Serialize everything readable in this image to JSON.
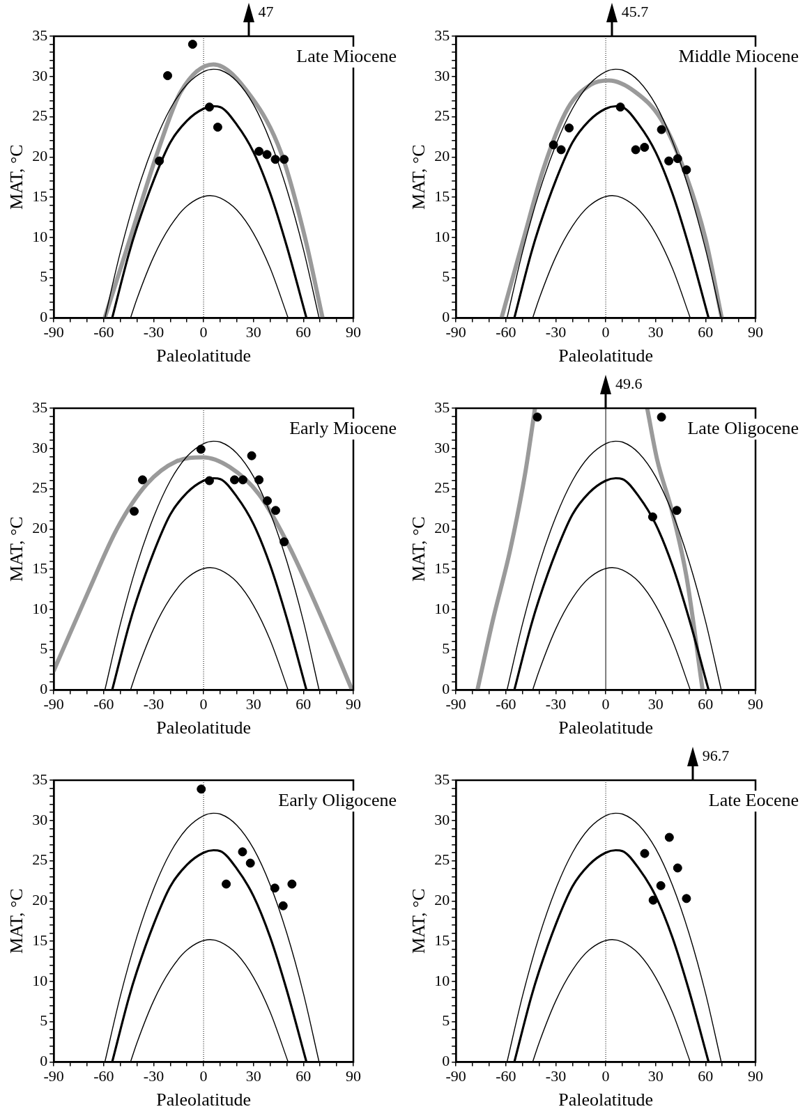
{
  "chart_data": [
    {
      "type": "line",
      "title": "Late Miocene",
      "xlabel": "Paleolatitude",
      "ylabel": "MAT, °C",
      "xlim": [
        -90,
        90
      ],
      "ylim": [
        0,
        35
      ],
      "xticks": [
        -90,
        {
          "value": -80,
          "label": null
        },
        {
          "value": -70,
          "label": null
        },
        -60,
        {
          "value": -50,
          "label": null
        },
        {
          "value": -40,
          "label": null
        },
        -30,
        {
          "value": -20,
          "label": null
        },
        {
          "value": -10,
          "label": null
        },
        0,
        {
          "value": 10,
          "label": null
        },
        {
          "value": 20,
          "label": null
        },
        30,
        {
          "value": 40,
          "label": null
        },
        {
          "value": 50,
          "label": null
        },
        60,
        {
          "value": 70,
          "label": null
        },
        {
          "value": 80,
          "label": null
        },
        90
      ],
      "yticks": [
        0,
        {
          "value": 1,
          "label": null
        },
        {
          "value": 2,
          "label": null
        },
        {
          "value": 3,
          "label": null
        },
        {
          "value": 4,
          "label": null
        },
        5,
        {
          "value": 6,
          "label": null
        },
        {
          "value": 7,
          "label": null
        },
        {
          "value": 8,
          "label": null
        },
        {
          "value": 9,
          "label": null
        },
        10,
        {
          "value": 11,
          "label": null
        },
        {
          "value": 12,
          "label": null
        },
        {
          "value": 13,
          "label": null
        },
        {
          "value": 14,
          "label": null
        },
        15,
        {
          "value": 16,
          "label": null
        },
        {
          "value": 17,
          "label": null
        },
        {
          "value": 18,
          "label": null
        },
        {
          "value": 19,
          "label": null
        },
        20,
        {
          "value": 21,
          "label": null
        },
        {
          "value": 22,
          "label": null
        },
        {
          "value": 23,
          "label": null
        },
        {
          "value": 24,
          "label": null
        },
        25,
        {
          "value": 26,
          "label": null
        },
        {
          "value": 27,
          "label": null
        },
        {
          "value": 28,
          "label": null
        },
        {
          "value": 29,
          "label": null
        },
        30,
        {
          "value": 31,
          "label": null
        },
        {
          "value": 32,
          "label": null
        },
        {
          "value": 33,
          "label": null
        },
        {
          "value": 34,
          "label": null
        },
        35
      ],
      "ref_lines": [
        {
          "axis": "x",
          "value": 0,
          "line_style": "dotted"
        }
      ],
      "annotations": [
        "47"
      ],
      "series": [
        {
          "type": "line",
          "color": "#000000",
          "x": [
            -59.3,
            -50,
            -40,
            -30,
            -20,
            -10,
            0,
            6,
            10,
            20,
            30,
            40,
            50,
            60,
            69.4
          ],
          "values": [
            0,
            8.2,
            15.6,
            21.5,
            26,
            29,
            30.6,
            30.9,
            30.8,
            29.4,
            26.5,
            22,
            16,
            8.5,
            0
          ]
        },
        {
          "type": "line",
          "color": "#000000",
          "x": [
            -54.9,
            -45,
            -40,
            -30,
            -20,
            -10,
            0,
            6,
            10,
            20,
            30,
            40,
            50,
            61.8
          ],
          "values": [
            0,
            7.9,
            11.3,
            17.1,
            21.8,
            24.5,
            26,
            26.3,
            26.2,
            24,
            20.6,
            15.5,
            8.9,
            0
          ]
        },
        {
          "type": "line",
          "color": "#000000",
          "x": [
            -43.9,
            -40,
            -30,
            -20,
            -10,
            3.9,
            10,
            20,
            30,
            40,
            50.8
          ],
          "values": [
            0,
            2.4,
            7.6,
            11.4,
            13.9,
            15.2,
            14.9,
            13.4,
            10.5,
            6.2,
            0
          ]
        },
        {
          "type": "line",
          "color": "#9a9a9a",
          "x": [
            -59.4,
            -43.8,
            -27.8,
            -13.7,
            5.9,
            28.9,
            46.6,
            60.8,
            71.5
          ],
          "values": [
            0,
            10.1,
            20.5,
            28.1,
            31.5,
            27.4,
            20.5,
            10.1,
            0
          ]
        },
        {
          "type": "scatter",
          "color": "#000000",
          "marker": "circle",
          "x": [
            -6.6,
            -21.6,
            -26.6,
            3.5,
            8.5,
            33.3,
            38.1,
            43.1,
            48.4
          ],
          "values": [
            34,
            30.1,
            19.5,
            26.2,
            23.7,
            20.7,
            20.3,
            19.7,
            19.7
          ]
        }
      ]
    },
    {
      "type": "line",
      "title": "Middle Miocene",
      "xlabel": "Paleolatitude",
      "ylabel": "MAT, °C",
      "xlim": [
        -90,
        90
      ],
      "ylim": [
        0,
        35
      ],
      "xticks": [
        -90,
        {
          "value": -80,
          "label": null
        },
        {
          "value": -70,
          "label": null
        },
        -60,
        {
          "value": -50,
          "label": null
        },
        {
          "value": -40,
          "label": null
        },
        -30,
        {
          "value": -20,
          "label": null
        },
        {
          "value": -10,
          "label": null
        },
        0,
        {
          "value": 10,
          "label": null
        },
        {
          "value": 20,
          "label": null
        },
        30,
        {
          "value": 40,
          "label": null
        },
        {
          "value": 50,
          "label": null
        },
        60,
        {
          "value": 70,
          "label": null
        },
        {
          "value": 80,
          "label": null
        },
        90
      ],
      "yticks": [
        0,
        {
          "value": 1,
          "label": null
        },
        {
          "value": 2,
          "label": null
        },
        {
          "value": 3,
          "label": null
        },
        {
          "value": 4,
          "label": null
        },
        5,
        {
          "value": 6,
          "label": null
        },
        {
          "value": 7,
          "label": null
        },
        {
          "value": 8,
          "label": null
        },
        {
          "value": 9,
          "label": null
        },
        10,
        {
          "value": 11,
          "label": null
        },
        {
          "value": 12,
          "label": null
        },
        {
          "value": 13,
          "label": null
        },
        {
          "value": 14,
          "label": null
        },
        15,
        {
          "value": 16,
          "label": null
        },
        {
          "value": 17,
          "label": null
        },
        {
          "value": 18,
          "label": null
        },
        {
          "value": 19,
          "label": null
        },
        20,
        {
          "value": 21,
          "label": null
        },
        {
          "value": 22,
          "label": null
        },
        {
          "value": 23,
          "label": null
        },
        {
          "value": 24,
          "label": null
        },
        25,
        {
          "value": 26,
          "label": null
        },
        {
          "value": 27,
          "label": null
        },
        {
          "value": 28,
          "label": null
        },
        {
          "value": 29,
          "label": null
        },
        30,
        {
          "value": 31,
          "label": null
        },
        {
          "value": 32,
          "label": null
        },
        {
          "value": 33,
          "label": null
        },
        {
          "value": 34,
          "label": null
        },
        35
      ],
      "ref_lines": [
        {
          "axis": "x",
          "value": 0,
          "line_style": "dotted"
        }
      ],
      "annotations": [
        "45.7"
      ],
      "series": [
        {
          "type": "line",
          "color": "#000000",
          "x": [
            -59.3,
            -50,
            -40,
            -30,
            -20,
            -10,
            0,
            6,
            10,
            20,
            30,
            40,
            50,
            60,
            69.4
          ],
          "values": [
            0,
            8.2,
            15.6,
            21.5,
            26,
            29,
            30.6,
            30.9,
            30.8,
            29.4,
            26.5,
            22,
            16,
            8.5,
            0
          ]
        },
        {
          "type": "line",
          "color": "#000000",
          "x": [
            -54.9,
            -45,
            -40,
            -30,
            -20,
            -10,
            0,
            6,
            10,
            20,
            30,
            40,
            50,
            61.8
          ],
          "values": [
            0,
            7.9,
            11.3,
            17.1,
            21.8,
            24.5,
            26,
            26.3,
            26.2,
            24,
            20.6,
            15.5,
            8.9,
            0
          ]
        },
        {
          "type": "line",
          "color": "#000000",
          "x": [
            -43.9,
            -40,
            -30,
            -20,
            -10,
            3.9,
            10,
            20,
            30,
            40,
            50.8
          ],
          "values": [
            0,
            2.4,
            7.6,
            11.4,
            13.9,
            15.2,
            14.9,
            13.4,
            10.5,
            6.2,
            0
          ]
        },
        {
          "type": "line",
          "color": "#9a9a9a",
          "x": [
            -62.6,
            -49.4,
            -37,
            -22.9,
            -8.8,
            1.8,
            17.6,
            33.5,
            47.6,
            60,
            69.7
          ],
          "values": [
            0,
            9.8,
            18.8,
            26,
            29,
            29.5,
            28.1,
            24.6,
            18.1,
            9.8,
            0
          ]
        },
        {
          "type": "scatter",
          "color": "#000000",
          "marker": "circle",
          "x": [
            -31.4,
            -26.8,
            -22,
            8.8,
            18,
            23.3,
            33.5,
            37.9,
            43.2,
            48.5
          ],
          "values": [
            21.5,
            20.9,
            23.6,
            26.2,
            20.9,
            21.2,
            23.4,
            19.5,
            19.8,
            18.4
          ]
        }
      ]
    },
    {
      "type": "line",
      "title": "Early Miocene",
      "xlabel": "Paleolatitude",
      "ylabel": "MAT, °C",
      "xlim": [
        -90,
        90
      ],
      "ylim": [
        0,
        35
      ],
      "xticks": [
        -90,
        {
          "value": -80,
          "label": null
        },
        {
          "value": -70,
          "label": null
        },
        -60,
        {
          "value": -50,
          "label": null
        },
        {
          "value": -40,
          "label": null
        },
        -30,
        {
          "value": -20,
          "label": null
        },
        {
          "value": -10,
          "label": null
        },
        0,
        {
          "value": 10,
          "label": null
        },
        {
          "value": 20,
          "label": null
        },
        30,
        {
          "value": 40,
          "label": null
        },
        {
          "value": 50,
          "label": null
        },
        60,
        {
          "value": 70,
          "label": null
        },
        {
          "value": 80,
          "label": null
        },
        90
      ],
      "yticks": [
        0,
        {
          "value": 1,
          "label": null
        },
        {
          "value": 2,
          "label": null
        },
        {
          "value": 3,
          "label": null
        },
        {
          "value": 4,
          "label": null
        },
        5,
        {
          "value": 6,
          "label": null
        },
        {
          "value": 7,
          "label": null
        },
        {
          "value": 8,
          "label": null
        },
        {
          "value": 9,
          "label": null
        },
        10,
        {
          "value": 11,
          "label": null
        },
        {
          "value": 12,
          "label": null
        },
        {
          "value": 13,
          "label": null
        },
        {
          "value": 14,
          "label": null
        },
        15,
        {
          "value": 16,
          "label": null
        },
        {
          "value": 17,
          "label": null
        },
        {
          "value": 18,
          "label": null
        },
        {
          "value": 19,
          "label": null
        },
        20,
        {
          "value": 21,
          "label": null
        },
        {
          "value": 22,
          "label": null
        },
        {
          "value": 23,
          "label": null
        },
        {
          "value": 24,
          "label": null
        },
        25,
        {
          "value": 26,
          "label": null
        },
        {
          "value": 27,
          "label": null
        },
        {
          "value": 28,
          "label": null
        },
        {
          "value": 29,
          "label": null
        },
        30,
        {
          "value": 31,
          "label": null
        },
        {
          "value": 32,
          "label": null
        },
        {
          "value": 33,
          "label": null
        },
        {
          "value": 34,
          "label": null
        },
        35
      ],
      "ref_lines": [
        {
          "axis": "x",
          "value": 0,
          "line_style": "dotted"
        }
      ],
      "series": [
        {
          "type": "line",
          "color": "#000000",
          "x": [
            -59.3,
            -50,
            -40,
            -30,
            -20,
            -10,
            0,
            6,
            10,
            20,
            30,
            40,
            50,
            60,
            69.4
          ],
          "values": [
            0,
            8.2,
            15.6,
            21.5,
            26,
            29,
            30.6,
            30.9,
            30.8,
            29.4,
            26.5,
            22,
            16,
            8.5,
            0
          ]
        },
        {
          "type": "line",
          "color": "#000000",
          "x": [
            -54.9,
            -45,
            -40,
            -30,
            -20,
            -10,
            0,
            6,
            10,
            20,
            30,
            40,
            50,
            61.8
          ],
          "values": [
            0,
            7.9,
            11.3,
            17.1,
            21.8,
            24.5,
            26,
            26.3,
            26.2,
            24,
            20.6,
            15.5,
            8.9,
            0
          ]
        },
        {
          "type": "line",
          "color": "#000000",
          "x": [
            -43.9,
            -40,
            -30,
            -20,
            -10,
            3.9,
            10,
            20,
            30,
            40,
            50.8
          ],
          "values": [
            0,
            2.4,
            7.6,
            11.4,
            13.9,
            15.2,
            14.9,
            13.4,
            10.5,
            6.2,
            0
          ]
        },
        {
          "type": "line",
          "color": "#9a9a9a",
          "x": [
            -90,
            -69.5,
            -51.8,
            -34,
            -16.3,
            -0.4,
            15.6,
            33.3,
            51,
            68.8,
            89.2
          ],
          "values": [
            2.4,
            12.1,
            20.1,
            25.6,
            28.4,
            28.9,
            27.7,
            24.3,
            18,
            10,
            0
          ]
        },
        {
          "type": "scatter",
          "color": "#000000",
          "marker": "circle",
          "x": [
            -41.7,
            -36.7,
            -1.6,
            3.5,
            18.6,
            23.6,
            28.9,
            33.3,
            38.3,
            43.3,
            48.4
          ],
          "values": [
            22.2,
            26.1,
            29.9,
            26,
            26.1,
            26.1,
            29.1,
            26.1,
            23.5,
            22.3,
            18.4
          ]
        }
      ]
    },
    {
      "type": "line",
      "title": "Late Oligocene",
      "xlabel": "Paleolatitude",
      "ylabel": "MAT, °C",
      "xlim": [
        -90,
        90
      ],
      "ylim": [
        0,
        35
      ],
      "xticks": [
        -90,
        {
          "value": -80,
          "label": null
        },
        {
          "value": -70,
          "label": null
        },
        -60,
        {
          "value": -50,
          "label": null
        },
        {
          "value": -40,
          "label": null
        },
        -30,
        {
          "value": -20,
          "label": null
        },
        {
          "value": -10,
          "label": null
        },
        0,
        {
          "value": 10,
          "label": null
        },
        {
          "value": 20,
          "label": null
        },
        30,
        {
          "value": 40,
          "label": null
        },
        {
          "value": 50,
          "label": null
        },
        60,
        {
          "value": 70,
          "label": null
        },
        {
          "value": 80,
          "label": null
        },
        90
      ],
      "yticks": [
        0,
        {
          "value": 1,
          "label": null
        },
        {
          "value": 2,
          "label": null
        },
        {
          "value": 3,
          "label": null
        },
        {
          "value": 4,
          "label": null
        },
        5,
        {
          "value": 6,
          "label": null
        },
        {
          "value": 7,
          "label": null
        },
        {
          "value": 8,
          "label": null
        },
        {
          "value": 9,
          "label": null
        },
        10,
        {
          "value": 11,
          "label": null
        },
        {
          "value": 12,
          "label": null
        },
        {
          "value": 13,
          "label": null
        },
        {
          "value": 14,
          "label": null
        },
        15,
        {
          "value": 16,
          "label": null
        },
        {
          "value": 17,
          "label": null
        },
        {
          "value": 18,
          "label": null
        },
        {
          "value": 19,
          "label": null
        },
        20,
        {
          "value": 21,
          "label": null
        },
        {
          "value": 22,
          "label": null
        },
        {
          "value": 23,
          "label": null
        },
        {
          "value": 24,
          "label": null
        },
        25,
        {
          "value": 26,
          "label": null
        },
        {
          "value": 27,
          "label": null
        },
        {
          "value": 28,
          "label": null
        },
        {
          "value": 29,
          "label": null
        },
        30,
        {
          "value": 31,
          "label": null
        },
        {
          "value": 32,
          "label": null
        },
        {
          "value": 33,
          "label": null
        },
        {
          "value": 34,
          "label": null
        },
        35
      ],
      "ref_lines": [
        {
          "axis": "x",
          "value": 0,
          "line_style": "solid"
        }
      ],
      "annotations": [
        "49.6"
      ],
      "series": [
        {
          "type": "line",
          "color": "#000000",
          "x": [
            -59.3,
            -50,
            -40,
            -30,
            -20,
            -10,
            0,
            6,
            10,
            20,
            30,
            40,
            50,
            60,
            69.4
          ],
          "values": [
            0,
            8.2,
            15.6,
            21.5,
            26,
            29,
            30.6,
            30.9,
            30.8,
            29.4,
            26.5,
            22,
            16,
            8.5,
            0
          ]
        },
        {
          "type": "line",
          "color": "#000000",
          "x": [
            -54.9,
            -45,
            -40,
            -30,
            -20,
            -10,
            0,
            6,
            10,
            20,
            30,
            40,
            50,
            61.8
          ],
          "values": [
            0,
            7.9,
            11.3,
            17.1,
            21.8,
            24.5,
            26,
            26.3,
            26.2,
            24,
            20.6,
            15.5,
            8.9,
            0
          ]
        },
        {
          "type": "line",
          "color": "#000000",
          "x": [
            -43.9,
            -40,
            -30,
            -20,
            -10,
            3.9,
            10,
            20,
            30,
            40,
            50.8
          ],
          "values": [
            0,
            2.4,
            7.6,
            11.4,
            13.9,
            15.2,
            14.9,
            13.4,
            10.5,
            6.2,
            0
          ]
        },
        {
          "type": "line",
          "color": "#9a9a9a",
          "x": [
            -77.1,
            -67.9,
            -57.3,
            -48.5,
            -42.5,
            -8,
            24.9,
            30.9,
            39.7,
            48.5,
            58.2
          ],
          "values": [
            0,
            8.6,
            17.5,
            26.8,
            35,
            null,
            35,
            28.6,
            22.3,
            14.1,
            0
          ]
        },
        {
          "type": "scatter",
          "color": "#000000",
          "marker": "circle",
          "x": [
            -41.1,
            33.5,
            28.2,
            42.7
          ],
          "values": [
            33.9,
            33.9,
            21.5,
            22.3
          ]
        }
      ]
    },
    {
      "type": "line",
      "title": "Early Oligocene",
      "xlabel": "Paleolatitude",
      "ylabel": "MAT, °C",
      "xlim": [
        -90,
        90
      ],
      "ylim": [
        0,
        35
      ],
      "xticks": [
        -90,
        {
          "value": -80,
          "label": null
        },
        {
          "value": -70,
          "label": null
        },
        -60,
        {
          "value": -50,
          "label": null
        },
        {
          "value": -40,
          "label": null
        },
        -30,
        {
          "value": -20,
          "label": null
        },
        {
          "value": -10,
          "label": null
        },
        0,
        {
          "value": 10,
          "label": null
        },
        {
          "value": 20,
          "label": null
        },
        30,
        {
          "value": 40,
          "label": null
        },
        {
          "value": 50,
          "label": null
        },
        60,
        {
          "value": 70,
          "label": null
        },
        {
          "value": 80,
          "label": null
        },
        90
      ],
      "yticks": [
        0,
        {
          "value": 1,
          "label": null
        },
        {
          "value": 2,
          "label": null
        },
        {
          "value": 3,
          "label": null
        },
        {
          "value": 4,
          "label": null
        },
        5,
        {
          "value": 6,
          "label": null
        },
        {
          "value": 7,
          "label": null
        },
        {
          "value": 8,
          "label": null
        },
        {
          "value": 9,
          "label": null
        },
        10,
        {
          "value": 11,
          "label": null
        },
        {
          "value": 12,
          "label": null
        },
        {
          "value": 13,
          "label": null
        },
        {
          "value": 14,
          "label": null
        },
        15,
        {
          "value": 16,
          "label": null
        },
        {
          "value": 17,
          "label": null
        },
        {
          "value": 18,
          "label": null
        },
        {
          "value": 19,
          "label": null
        },
        20,
        {
          "value": 21,
          "label": null
        },
        {
          "value": 22,
          "label": null
        },
        {
          "value": 23,
          "label": null
        },
        {
          "value": 24,
          "label": null
        },
        25,
        {
          "value": 26,
          "label": null
        },
        {
          "value": 27,
          "label": null
        },
        {
          "value": 28,
          "label": null
        },
        {
          "value": 29,
          "label": null
        },
        30,
        {
          "value": 31,
          "label": null
        },
        {
          "value": 32,
          "label": null
        },
        {
          "value": 33,
          "label": null
        },
        {
          "value": 34,
          "label": null
        },
        35
      ],
      "ref_lines": [
        {
          "axis": "x",
          "value": 0,
          "line_style": "dotted"
        }
      ],
      "series": [
        {
          "type": "line",
          "color": "#000000",
          "x": [
            -59.3,
            -50,
            -40,
            -30,
            -20,
            -10,
            0,
            6,
            10,
            20,
            30,
            40,
            50,
            60,
            69.4
          ],
          "values": [
            0,
            8.2,
            15.6,
            21.5,
            26,
            29,
            30.6,
            30.9,
            30.8,
            29.4,
            26.5,
            22,
            16,
            8.5,
            0
          ]
        },
        {
          "type": "line",
          "color": "#000000",
          "x": [
            -54.9,
            -45,
            -40,
            -30,
            -20,
            -10,
            0,
            6,
            10,
            20,
            30,
            40,
            50,
            61.8
          ],
          "values": [
            0,
            7.9,
            11.3,
            17.1,
            21.8,
            24.5,
            26,
            26.3,
            26.2,
            24,
            20.6,
            15.5,
            8.9,
            0
          ]
        },
        {
          "type": "line",
          "color": "#000000",
          "x": [
            -43.9,
            -40,
            -30,
            -20,
            -10,
            3.9,
            10,
            20,
            30,
            40,
            50.8
          ],
          "values": [
            0,
            2.4,
            7.6,
            11.4,
            13.9,
            15.2,
            14.9,
            13.4,
            10.5,
            6.2,
            0
          ]
        },
        {
          "type": "scatter",
          "color": "#000000",
          "marker": "circle",
          "x": [
            -1.4,
            23.4,
            28.1,
            13.6,
            42.8,
            53.1,
            47.8
          ],
          "values": [
            33.9,
            26.1,
            24.7,
            22.1,
            21.6,
            22.1,
            19.4
          ]
        }
      ]
    },
    {
      "type": "line",
      "title": "Late Eocene",
      "xlabel": "Paleolatitude",
      "ylabel": "MAT, °C",
      "xlim": [
        -90,
        90
      ],
      "ylim": [
        0,
        35
      ],
      "xticks": [
        -90,
        {
          "value": -80,
          "label": null
        },
        {
          "value": -70,
          "label": null
        },
        -60,
        {
          "value": -50,
          "label": null
        },
        {
          "value": -40,
          "label": null
        },
        -30,
        {
          "value": -20,
          "label": null
        },
        {
          "value": -10,
          "label": null
        },
        0,
        {
          "value": 10,
          "label": null
        },
        {
          "value": 20,
          "label": null
        },
        30,
        {
          "value": 40,
          "label": null
        },
        {
          "value": 50,
          "label": null
        },
        60,
        {
          "value": 70,
          "label": null
        },
        {
          "value": 80,
          "label": null
        },
        90
      ],
      "yticks": [
        0,
        {
          "value": 1,
          "label": null
        },
        {
          "value": 2,
          "label": null
        },
        {
          "value": 3,
          "label": null
        },
        {
          "value": 4,
          "label": null
        },
        5,
        {
          "value": 6,
          "label": null
        },
        {
          "value": 7,
          "label": null
        },
        {
          "value": 8,
          "label": null
        },
        {
          "value": 9,
          "label": null
        },
        10,
        {
          "value": 11,
          "label": null
        },
        {
          "value": 12,
          "label": null
        },
        {
          "value": 13,
          "label": null
        },
        {
          "value": 14,
          "label": null
        },
        15,
        {
          "value": 16,
          "label": null
        },
        {
          "value": 17,
          "label": null
        },
        {
          "value": 18,
          "label": null
        },
        {
          "value": 19,
          "label": null
        },
        20,
        {
          "value": 21,
          "label": null
        },
        {
          "value": 22,
          "label": null
        },
        {
          "value": 23,
          "label": null
        },
        {
          "value": 24,
          "label": null
        },
        25,
        {
          "value": 26,
          "label": null
        },
        {
          "value": 27,
          "label": null
        },
        {
          "value": 28,
          "label": null
        },
        {
          "value": 29,
          "label": null
        },
        30,
        {
          "value": 31,
          "label": null
        },
        {
          "value": 32,
          "label": null
        },
        {
          "value": 33,
          "label": null
        },
        {
          "value": 34,
          "label": null
        },
        35
      ],
      "ref_lines": [
        {
          "axis": "x",
          "value": 0,
          "line_style": "dotted"
        }
      ],
      "annotations": [
        "96.7"
      ],
      "series": [
        {
          "type": "line",
          "color": "#000000",
          "x": [
            -59.3,
            -50,
            -40,
            -30,
            -20,
            -10,
            0,
            6,
            10,
            20,
            30,
            40,
            50,
            60,
            69.4
          ],
          "values": [
            0,
            8.2,
            15.6,
            21.5,
            26,
            29,
            30.6,
            30.9,
            30.8,
            29.4,
            26.5,
            22,
            16,
            8.5,
            0
          ]
        },
        {
          "type": "line",
          "color": "#000000",
          "x": [
            -54.9,
            -45,
            -40,
            -30,
            -20,
            -10,
            0,
            6,
            10,
            20,
            30,
            40,
            50,
            61.8
          ],
          "values": [
            0,
            7.9,
            11.3,
            17.1,
            21.8,
            24.5,
            26,
            26.3,
            26.2,
            24,
            20.6,
            15.5,
            8.9,
            0
          ]
        },
        {
          "type": "line",
          "color": "#000000",
          "x": [
            -43.9,
            -40,
            -30,
            -20,
            -10,
            3.9,
            10,
            20,
            30,
            40,
            50.8
          ],
          "values": [
            0,
            2.4,
            7.6,
            11.4,
            13.9,
            15.2,
            14.9,
            13.4,
            10.5,
            6.2,
            0
          ]
        },
        {
          "type": "scatter",
          "color": "#000000",
          "marker": "circle",
          "x": [
            23.4,
            38.2,
            43.2,
            33.1,
            28.5,
            48.5
          ],
          "values": [
            25.9,
            27.9,
            24.1,
            21.9,
            20.1,
            20.3
          ]
        }
      ]
    }
  ]
}
